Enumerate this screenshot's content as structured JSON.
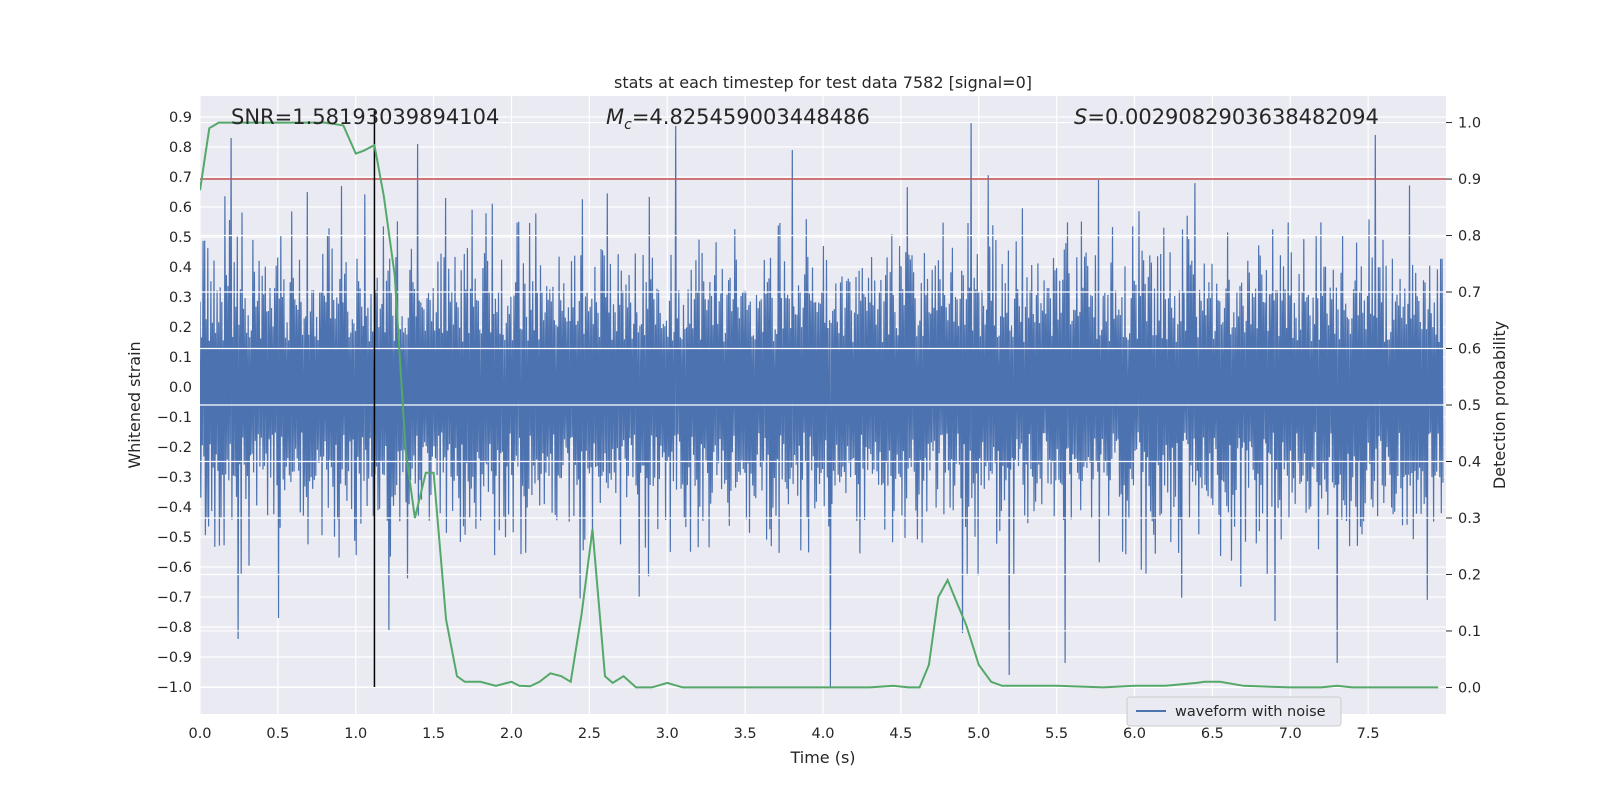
{
  "chart_data": {
    "type": "line",
    "title": "stats at each timestep for test data 7582 [signal=0]",
    "xlabel": "Time (s)",
    "ylabel_left": "Whitened strain",
    "ylabel_right": "Detection probability",
    "xlim": [
      0.0,
      8.0
    ],
    "ylim_left": [
      -1.09,
      0.97
    ],
    "ylim_right": [
      -0.047,
      1.047
    ],
    "x_ticks": [
      "0.0",
      "0.5",
      "1.0",
      "1.5",
      "2.0",
      "2.5",
      "3.0",
      "3.5",
      "4.0",
      "4.5",
      "5.0",
      "5.5",
      "6.0",
      "6.5",
      "7.0",
      "7.5"
    ],
    "y_left_ticks": [
      "0.9",
      "0.8",
      "0.7",
      "0.6",
      "0.5",
      "0.4",
      "0.3",
      "0.2",
      "0.1",
      "0.0",
      "−0.1",
      "−0.2",
      "−0.3",
      "−0.4",
      "−0.5",
      "−0.6",
      "−0.7",
      "−0.8",
      "−0.9",
      "−1.0"
    ],
    "y_right_ticks": [
      "1.0",
      "0.9",
      "0.8",
      "0.7",
      "0.6",
      "0.5",
      "0.4",
      "0.3",
      "0.2",
      "0.1",
      "0.0"
    ],
    "annotations": {
      "snr": "SNR=1.58193039894104",
      "mc_symbol": "M",
      "mc_sub": "c",
      "mc_value": "=4.825459003448486",
      "s_symbol": "S",
      "s_value": "=0.0029082903638482094"
    },
    "threshold_line": {
      "axis": "right",
      "value": 0.9,
      "color": "#c44e52"
    },
    "marker_line": {
      "x": 1.12,
      "y_from": -1.0,
      "y_to": 0.9,
      "color": "#000000"
    },
    "series": [
      {
        "name": "waveform with noise",
        "axis": "left",
        "color": "#4c72b0",
        "sample_count": 1600,
        "band": [
          -0.06,
          0.12
        ],
        "typical_amplitude": [
          -0.45,
          0.45
        ],
        "peaks": [
          {
            "x": 0.2,
            "y": 0.83
          },
          {
            "x": 1.4,
            "y": 0.81
          },
          {
            "x": 3.05,
            "y": 0.87
          },
          {
            "x": 4.95,
            "y": 0.88
          },
          {
            "x": 3.8,
            "y": 0.79
          },
          {
            "x": 7.55,
            "y": 0.84
          },
          {
            "x": 4.05,
            "y": -1.0
          },
          {
            "x": 0.24,
            "y": -0.84
          },
          {
            "x": 1.21,
            "y": -0.81
          },
          {
            "x": 5.55,
            "y": -0.92
          },
          {
            "x": 7.3,
            "y": -0.92
          },
          {
            "x": 5.2,
            "y": -0.96
          },
          {
            "x": 6.9,
            "y": -0.78
          },
          {
            "x": 4.9,
            "y": -0.82
          },
          {
            "x": 0.5,
            "y": -0.77
          }
        ]
      },
      {
        "name": "detection probability",
        "axis": "right",
        "color": "#55a868",
        "x": [
          0.0,
          0.06,
          0.12,
          0.2,
          0.4,
          0.6,
          0.8,
          0.92,
          1.0,
          1.05,
          1.12,
          1.18,
          1.25,
          1.32,
          1.38,
          1.45,
          1.5,
          1.58,
          1.65,
          1.7,
          1.8,
          1.9,
          2.0,
          2.05,
          2.12,
          2.18,
          2.25,
          2.32,
          2.38,
          2.45,
          2.52,
          2.6,
          2.65,
          2.72,
          2.8,
          2.9,
          3.0,
          3.1,
          3.3,
          3.5,
          3.8,
          4.0,
          4.3,
          4.45,
          4.55,
          4.62,
          4.68,
          4.74,
          4.8,
          4.86,
          4.92,
          5.0,
          5.08,
          5.15,
          5.3,
          5.5,
          5.8,
          6.0,
          6.2,
          6.4,
          6.45,
          6.55,
          6.7,
          7.0,
          7.2,
          7.3,
          7.4,
          7.6,
          7.8,
          7.95
        ],
        "y": [
          0.88,
          0.99,
          1.0,
          1.0,
          1.0,
          1.0,
          1.0,
          0.995,
          0.945,
          0.95,
          0.96,
          0.87,
          0.73,
          0.42,
          0.3,
          0.38,
          0.38,
          0.12,
          0.02,
          0.01,
          0.01,
          0.003,
          0.01,
          0.003,
          0.002,
          0.01,
          0.025,
          0.02,
          0.01,
          0.13,
          0.28,
          0.02,
          0.008,
          0.02,
          0.0,
          0.0,
          0.008,
          0.0,
          0.0,
          0.0,
          0.0,
          0.0,
          0.0,
          0.003,
          0.0,
          0.0,
          0.04,
          0.16,
          0.19,
          0.15,
          0.11,
          0.04,
          0.01,
          0.003,
          0.003,
          0.003,
          0.0,
          0.003,
          0.003,
          0.008,
          0.01,
          0.01,
          0.003,
          0.0,
          0.0,
          0.003,
          0.0,
          0.0,
          0.0,
          0.0
        ]
      }
    ],
    "legend": {
      "location": "lower-right",
      "entries": [
        "waveform with noise"
      ]
    }
  }
}
